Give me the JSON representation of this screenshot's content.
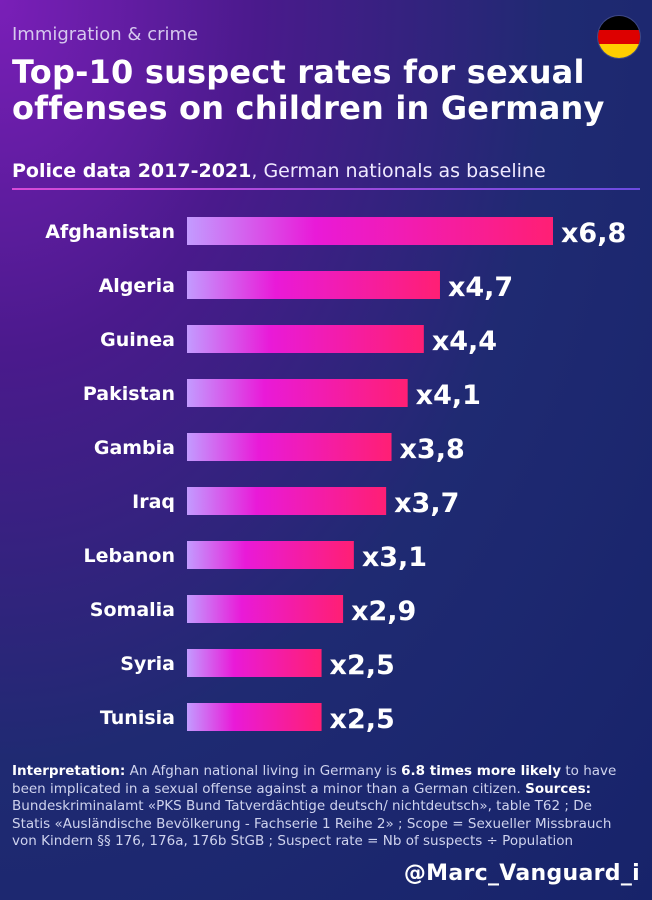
{
  "header": {
    "kicker": "Immigration & crime",
    "title": "Top-10 suspect rates for sexual offenses on children in Germany",
    "subtitle_bold": "Police data 2017-2021",
    "subtitle_rest": ", German nationals as baseline",
    "flag_icon": "germany-flag-icon"
  },
  "chart_data": {
    "type": "bar",
    "orientation": "horizontal",
    "categories": [
      "Afghanistan",
      "Algeria",
      "Guinea",
      "Pakistan",
      "Gambia",
      "Iraq",
      "Lebanon",
      "Somalia",
      "Syria",
      "Tunisia"
    ],
    "values": [
      6.8,
      4.7,
      4.4,
      4.1,
      3.8,
      3.7,
      3.1,
      2.9,
      2.5,
      2.5
    ],
    "labels": [
      "x6,8",
      "x4,7",
      "x4,4",
      "x4,1",
      "x3,8",
      "x3,7",
      "x3,1",
      "x2,9",
      "x2,5",
      "x2,5"
    ],
    "colors": {
      "bar_start": "#c39bff",
      "bar_mid": "#e91ad8",
      "bar_end": "#ff1f74"
    }
  },
  "footer": {
    "interp_label": "Interpretation:",
    "interp_text_1": " An Afghan national living in Germany is ",
    "interp_bold": "6.8 times more likely",
    "interp_text_2": " to have been implicated in a sexual offense against a minor than a German citizen. ",
    "sources_label": "Sources:",
    "sources_text": " Bundeskriminalamt «PKS Bund Tatverdächtige deutsch/ nichtdeutsch», table T62 ; De Statis «Ausländische Bevölkerung - Fachserie 1 Reihe 2» ; Scope = Sexueller Missbrauch von Kindern §§ 176, 176a, 176b StGB ; Suspect rate = Nb of suspects ÷ Population",
    "handle": "@Marc_Vanguard_i"
  }
}
